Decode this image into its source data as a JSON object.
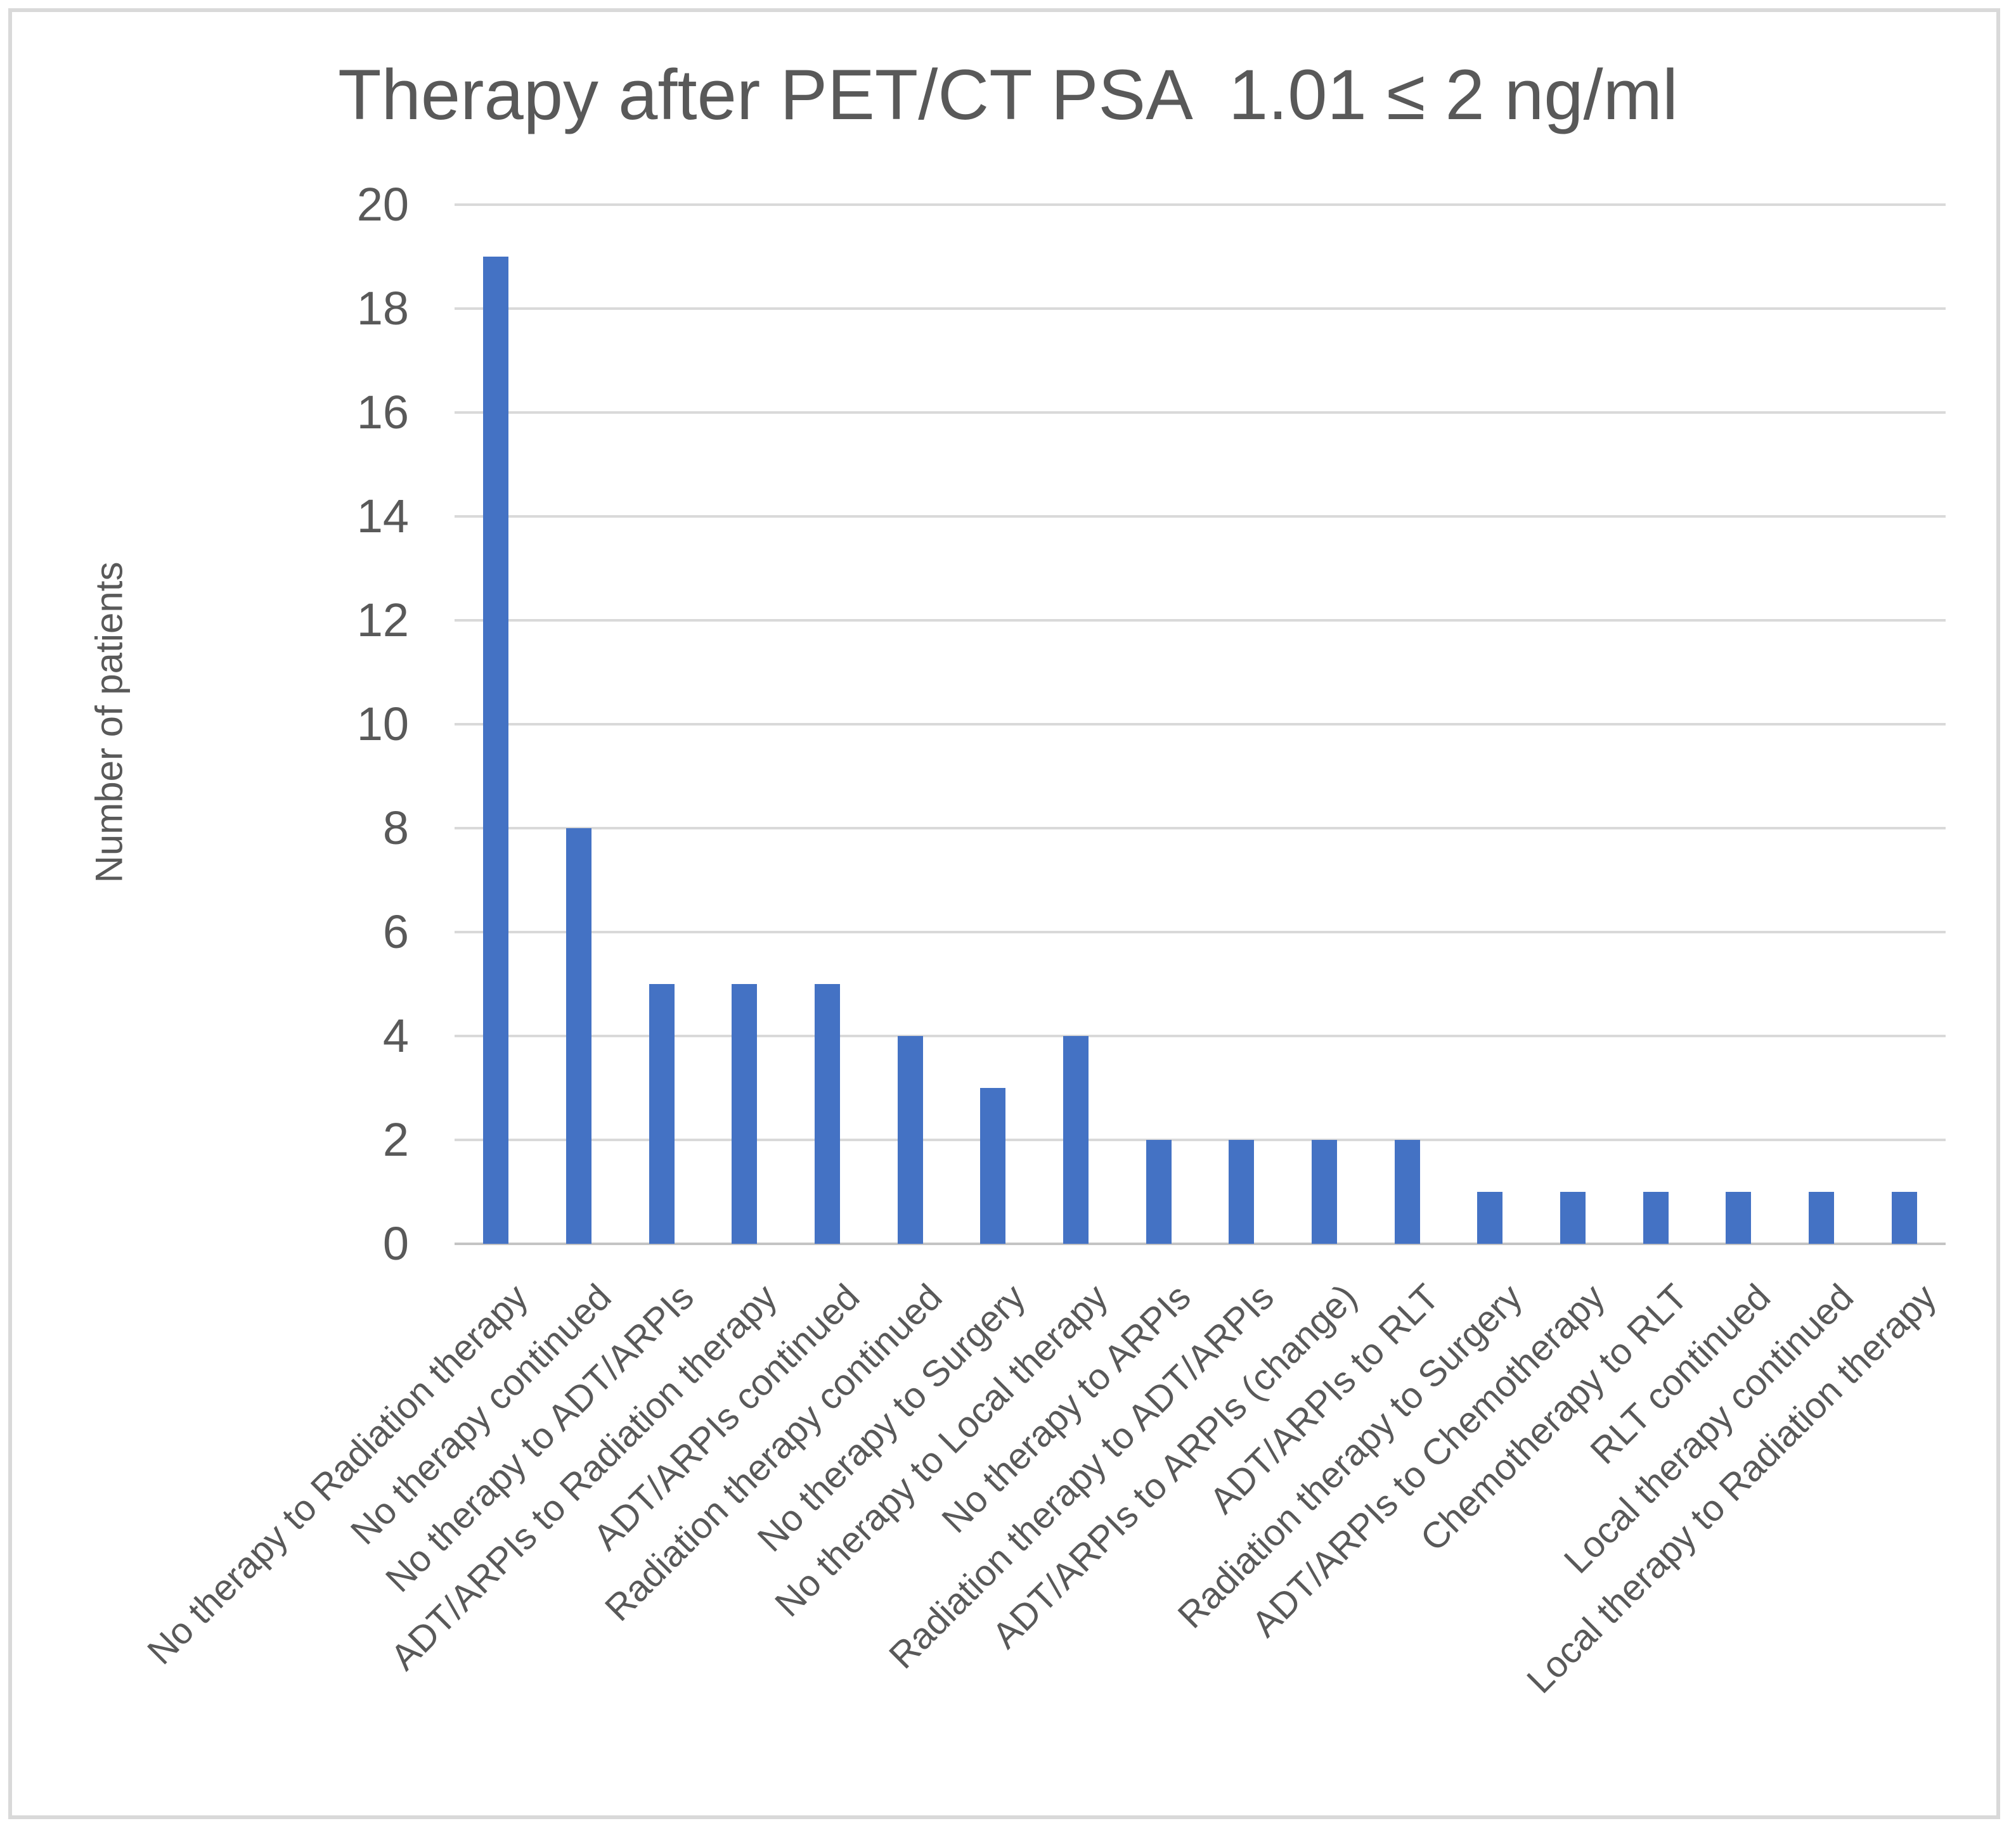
{
  "chart_data": {
    "type": "bar",
    "title": "Therapy after PET/CT PSA  1.01 ≤ 2 ng/ml",
    "xlabel": "",
    "ylabel": "Number of patients",
    "ylim": [
      0,
      20
    ],
    "ytick_step": 2,
    "yticks": [
      0,
      2,
      4,
      6,
      8,
      10,
      12,
      14,
      16,
      18,
      20
    ],
    "grid": true,
    "legend": "none",
    "bar_color": "#4472C4",
    "categories": [
      "No therapy to Radiation therapy",
      "No therapy continued",
      "No therapy to ADT/ARPIs",
      "ADT/ARPIs to Radiation therapy",
      "ADT/ARPIs continued",
      "Radiation therapy continued",
      "No therapy to Surgery",
      "No therapy to Local therapy",
      "No therapy to ARPIs",
      "Radiation therapy to ADT/ARPIs",
      "ADT/ARPIs to ARPIs (change)",
      "ADT/ARPIs to RLT",
      "Radiation therapy to Surgery",
      "ADT/ARPIs to Chemotherapy",
      "Chemotherapy to RLT",
      "RLT continued",
      "Local therapy continued",
      "Local therapy to Radiation therapy"
    ],
    "values": [
      19,
      8,
      5,
      5,
      5,
      4,
      3,
      4,
      2,
      2,
      2,
      2,
      1,
      1,
      1,
      1,
      1,
      1
    ]
  },
  "colors": {
    "bar": "#4472C4",
    "gridline": "#D9D9D9",
    "axis_line": "#C4C4C4",
    "text": "#595959",
    "border": "#D9D9D9",
    "background": "#FFFFFF"
  }
}
